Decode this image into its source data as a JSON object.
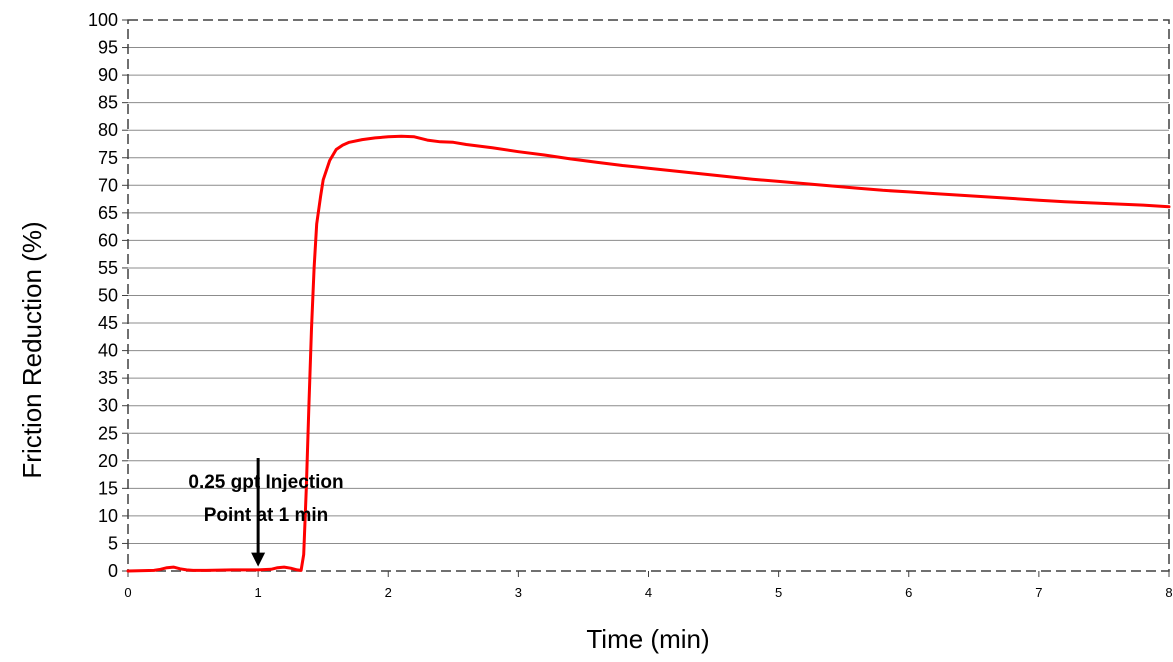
{
  "chart_data": {
    "type": "line",
    "title": "",
    "xlabel": "Time (min)",
    "ylabel": "Friction Reduction (%)",
    "xlim": [
      0,
      8
    ],
    "ylim": [
      0,
      100
    ],
    "xticks": [
      0,
      1,
      2,
      3,
      4,
      5,
      6,
      7,
      8
    ],
    "yticks": [
      0,
      5,
      10,
      15,
      20,
      25,
      30,
      35,
      40,
      45,
      50,
      55,
      60,
      65,
      70,
      75,
      80,
      85,
      90,
      95,
      100
    ],
    "grid": "horizontal",
    "legend": "none",
    "series": [
      {
        "color": "#ff0000",
        "x": [
          0,
          0.2,
          0.25,
          0.3,
          0.35,
          0.4,
          0.45,
          0.5,
          0.6,
          0.8,
          1.0,
          1.1,
          1.15,
          1.2,
          1.25,
          1.3,
          1.33,
          1.35,
          1.37,
          1.39,
          1.41,
          1.43,
          1.45,
          1.48,
          1.5,
          1.55,
          1.6,
          1.65,
          1.7,
          1.8,
          1.9,
          2.0,
          2.1,
          2.2,
          2.3,
          2.4,
          2.5,
          2.6,
          2.8,
          3.0,
          3.2,
          3.4,
          3.6,
          3.8,
          4.0,
          4.2,
          4.4,
          4.6,
          4.8,
          5.0,
          5.2,
          5.4,
          5.6,
          5.8,
          6.0,
          6.2,
          6.4,
          6.6,
          6.8,
          7.0,
          7.2,
          7.4,
          7.6,
          7.8,
          8.0
        ],
        "y": [
          0,
          0.1,
          0.3,
          0.6,
          0.7,
          0.4,
          0.2,
          0.1,
          0.1,
          0.2,
          0.2,
          0.3,
          0.6,
          0.7,
          0.5,
          0.2,
          0.1,
          3,
          15,
          30,
          44,
          55,
          63,
          68,
          71,
          74.5,
          76.5,
          77.3,
          77.8,
          78.3,
          78.6,
          78.8,
          78.9,
          78.8,
          78.2,
          77.9,
          77.8,
          77.4,
          76.8,
          76.1,
          75.5,
          74.8,
          74.2,
          73.6,
          73.1,
          72.6,
          72.1,
          71.6,
          71.1,
          70.7,
          70.3,
          69.9,
          69.5,
          69.1,
          68.8,
          68.5,
          68.2,
          67.9,
          67.6,
          67.3,
          67.0,
          66.8,
          66.6,
          66.4,
          66.1
        ]
      }
    ],
    "annotations": [
      {
        "text_lines": [
          "0.25 gpt Injection",
          "Point at 1 min"
        ],
        "arrow_x": 1,
        "arrow_from_y": 20.5,
        "arrow_to_y": 0.8
      }
    ]
  }
}
